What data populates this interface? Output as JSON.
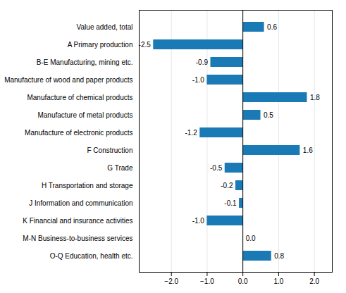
{
  "chart_data": {
    "type": "bar",
    "orientation": "horizontal",
    "categories": [
      "O-Q Education, health etc.",
      "M-N Business-to-business services",
      "K Financial and insurance activities",
      "J Information and communication",
      "H Transportation and storage",
      "G Trade",
      "F Construction",
      "Manufacture of electronic products",
      "Manufacture of metal products",
      "Manufacture of chemical products",
      "Manufacture of wood and paper products",
      "B-E Manufacturing, mining etc.",
      "A Primary production",
      "Value added, total"
    ],
    "values": [
      0.8,
      0.0,
      -1.0,
      -0.1,
      -0.2,
      -0.5,
      1.6,
      -1.2,
      0.5,
      1.8,
      -1.0,
      -0.9,
      -2.5,
      0.6
    ],
    "value_labels": [
      "0.8",
      "0.0",
      "-1.0",
      "-0.1",
      "-0.2",
      "-0.5",
      "1.6",
      "-1.2",
      "0.5",
      "1.8",
      "-1.0",
      "-0.9",
      "-2.5",
      "0.6"
    ],
    "data_labels": true,
    "color": "#1a7ab5",
    "xlim": [
      -2.9,
      2.5
    ],
    "xticks": [
      -2,
      -1,
      0,
      1,
      2
    ],
    "grid": true
  }
}
